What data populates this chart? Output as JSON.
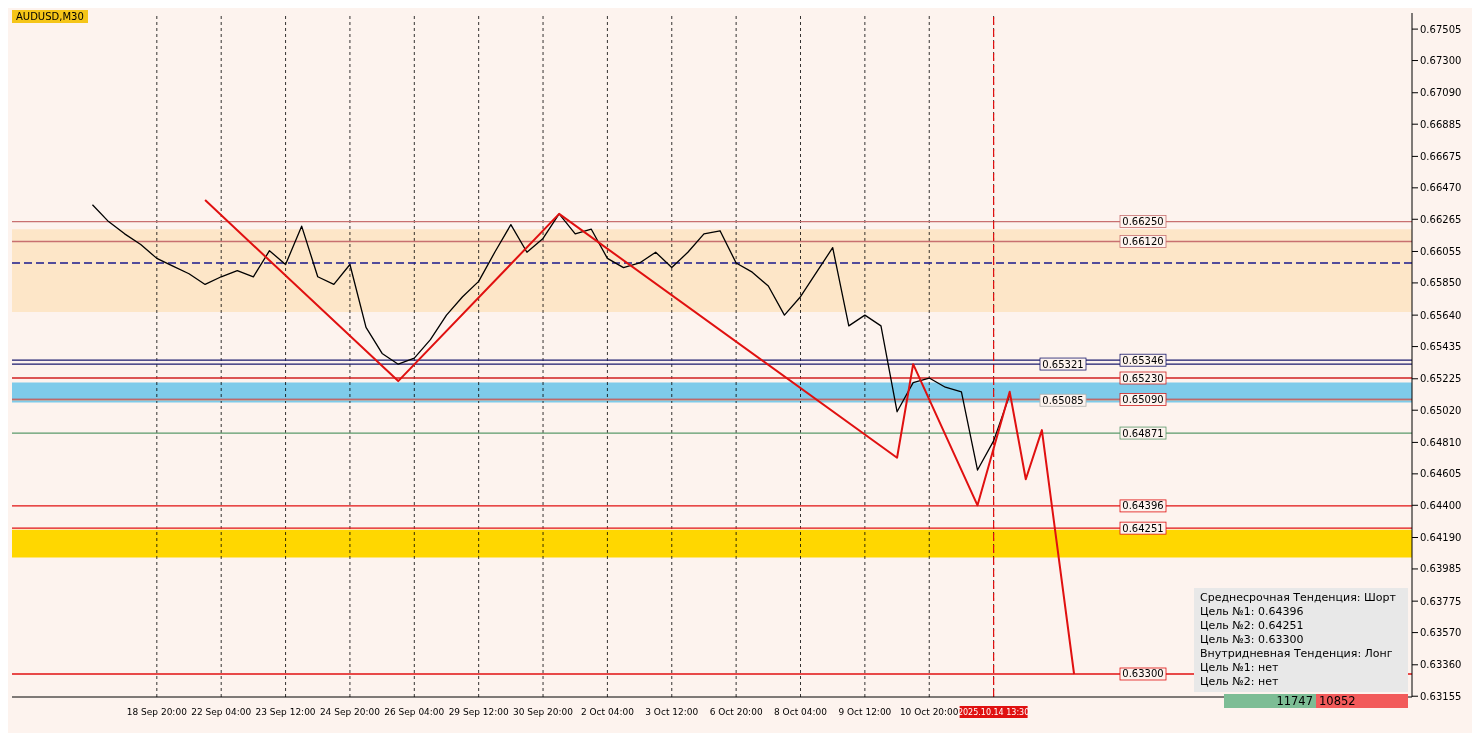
{
  "chart_data": {
    "type": "line",
    "title": "AUDUSD,M30",
    "categories": [
      null,
      null,
      null,
      null,
      null,
      null,
      null,
      null,
      null,
      "18 Sep 20:00",
      null,
      null,
      null,
      "22 Sep 04:00",
      null,
      null,
      null,
      "23 Sep 12:00",
      null,
      null,
      null,
      "24 Sep 20:00",
      null,
      null,
      null,
      "26 Sep 04:00",
      null,
      null,
      null,
      "29 Sep 12:00",
      null,
      null,
      null,
      "30 Sep 20:00",
      null,
      null,
      null,
      "2 Oct 04:00",
      null,
      null,
      null,
      "3 Oct 12:00",
      null,
      null,
      null,
      "6 Oct 20:00",
      null,
      null,
      null,
      "8 Oct 04:00",
      null,
      null,
      null,
      "9 Oct 12:00",
      null,
      null,
      null,
      "10 Oct 20:00",
      null,
      null,
      null,
      "2025.10.14 13:30",
      null,
      null,
      null,
      null,
      null,
      null,
      null,
      null,
      null,
      null,
      null,
      null,
      null,
      null,
      null,
      null,
      null,
      null,
      null,
      null,
      null,
      null,
      null,
      null,
      null,
      null
    ],
    "series": [
      {
        "color": "#000000",
        "values": [
          null,
          null,
          null,
          null,
          null,
          0.6636,
          0.6625,
          0.6617,
          0.661,
          0.6601,
          0.6596,
          0.6591,
          0.6584,
          0.6589,
          0.6593,
          0.6589,
          0.6606,
          0.6597,
          0.6622,
          0.6589,
          0.6584,
          0.6597,
          0.6556,
          0.6539,
          0.6532,
          0.6536,
          0.6548,
          0.6564,
          0.6576,
          0.6586,
          0.6605,
          0.6623,
          0.6605,
          0.6614,
          0.663,
          0.6617,
          0.662,
          0.6601,
          0.6595,
          0.6598,
          0.6605,
          0.6595,
          0.6605,
          0.6617,
          0.6619,
          0.6598,
          0.6592,
          0.6583,
          0.6564,
          0.6576,
          0.6592,
          0.6608,
          0.6557,
          0.6564,
          0.6557,
          0.6501,
          0.652,
          0.6523,
          0.6517,
          0.6514,
          0.6463,
          0.6482,
          0.6512,
          null,
          null,
          null,
          null,
          null,
          null,
          null,
          null,
          null,
          null,
          null,
          null,
          null,
          null,
          null,
          null,
          null,
          null,
          null,
          null,
          null,
          null,
          null,
          null,
          null
        ]
      },
      {
        "color": "#e01010",
        "values": [
          null,
          null,
          null,
          null,
          null,
          null,
          null,
          null,
          null,
          null,
          null,
          null,
          0.6639,
          null,
          null,
          null,
          null,
          null,
          null,
          null,
          null,
          null,
          null,
          null,
          0.6521,
          null,
          null,
          null,
          null,
          null,
          null,
          null,
          null,
          null,
          0.663,
          null,
          null,
          null,
          null,
          null,
          null,
          null,
          null,
          null,
          null,
          null,
          null,
          null,
          null,
          null,
          null,
          null,
          null,
          null,
          null,
          0.6471,
          0.6532,
          null,
          null,
          null,
          0.644,
          null,
          0.6514,
          0.6457,
          0.6489,
          null,
          0.633,
          null,
          null,
          null,
          null,
          null,
          null,
          null,
          null,
          null,
          null,
          null,
          null,
          null,
          null,
          null,
          null,
          null,
          null,
          null,
          null,
          null
        ]
      }
    ],
    "ylim": [
      0.6315,
      0.6761
    ],
    "yticks": [
      {
        "value": 0.67505,
        "label": "0.67505"
      },
      {
        "value": 0.673,
        "label": "0.67300"
      },
      {
        "value": 0.6709,
        "label": "0.67090"
      },
      {
        "value": 0.66885,
        "label": "0.66885"
      },
      {
        "value": 0.66675,
        "label": "0.66675"
      },
      {
        "value": 0.6647,
        "label": "0.66470"
      },
      {
        "value": 0.66265,
        "label": "0.66265"
      },
      {
        "value": 0.66055,
        "label": "0.66055"
      },
      {
        "value": 0.6585,
        "label": "0.65850"
      },
      {
        "value": 0.6564,
        "label": "0.65640"
      },
      {
        "value": 0.65435,
        "label": "0.65435"
      },
      {
        "value": 0.65225,
        "label": "0.65225"
      },
      {
        "value": 0.6502,
        "label": "0.65020"
      },
      {
        "value": 0.6481,
        "label": "0.64810"
      },
      {
        "value": 0.64605,
        "label": "0.64605"
      },
      {
        "value": 0.644,
        "label": "0.64400"
      },
      {
        "value": 0.6419,
        "label": "0.64190"
      },
      {
        "value": 0.63985,
        "label": "0.63985"
      },
      {
        "value": 0.63775,
        "label": "0.63775"
      },
      {
        "value": 0.6357,
        "label": "0.63570"
      },
      {
        "value": 0.6336,
        "label": "0.63360"
      },
      {
        "value": 0.63155,
        "label": "0.63155"
      }
    ],
    "grid": "x",
    "legend": false,
    "marker": "none",
    "line_style": "solid",
    "ref_lines": [
      {
        "axis": "y",
        "value": 0.6625,
        "label": "0.66250",
        "color": "#c87070"
      },
      {
        "axis": "y",
        "value": 0.6612,
        "label": "0.66120",
        "color": "#c87070"
      },
      {
        "axis": "y",
        "value": 0.6598,
        "color": "#1a1a8c",
        "line_style": "dashed"
      },
      {
        "axis": "y",
        "value": 0.65346,
        "label": "0.65346",
        "color": "#1a1a6c"
      },
      {
        "axis": "y",
        "value": 0.65321,
        "label": "0.65321",
        "color": "#1a1a6c"
      },
      {
        "axis": "y",
        "value": 0.6523,
        "label": "0.65230",
        "color": "#d02020"
      },
      {
        "axis": "y",
        "value": 0.6509,
        "label": "0.65090",
        "color": "#d02020"
      },
      {
        "axis": "y",
        "value": 0.65085,
        "label": "0.65085",
        "color": "#b0b0b0"
      },
      {
        "axis": "y",
        "value": 0.64871,
        "label": "0.64871",
        "color": "#5a9a6a"
      },
      {
        "axis": "y",
        "value": 0.64396,
        "label": "0.64396",
        "color": "#e01010"
      },
      {
        "axis": "y",
        "value": 0.64251,
        "label": "0.64251",
        "color": "#e01010"
      },
      {
        "axis": "y",
        "value": 0.633,
        "label": "0.63300",
        "color": "#e01010"
      },
      {
        "axis": "x",
        "value": "2025.10.14 13:30",
        "color": "#e01010",
        "line_style": "dashed"
      }
    ],
    "bands": [
      {
        "axis": "y",
        "from": 0.6566,
        "to": 0.662,
        "color": "#fde6c8"
      },
      {
        "axis": "y",
        "from": 0.6507,
        "to": 0.652,
        "color": "#7ecbea"
      },
      {
        "axis": "y",
        "from": 0.6406,
        "to": 0.6424,
        "color": "#ffd700"
      }
    ],
    "annotations": [
      "Среднесрочная Тенденция: Шорт",
      "Цель №1: 0.64396",
      "Цель №2: 0.64251",
      "Цель №3: 0.63300",
      "Внутридневная Тенденция: Лонг",
      "Цель №1: нет",
      "Цель №2: нет",
      "11747",
      "10852"
    ]
  }
}
